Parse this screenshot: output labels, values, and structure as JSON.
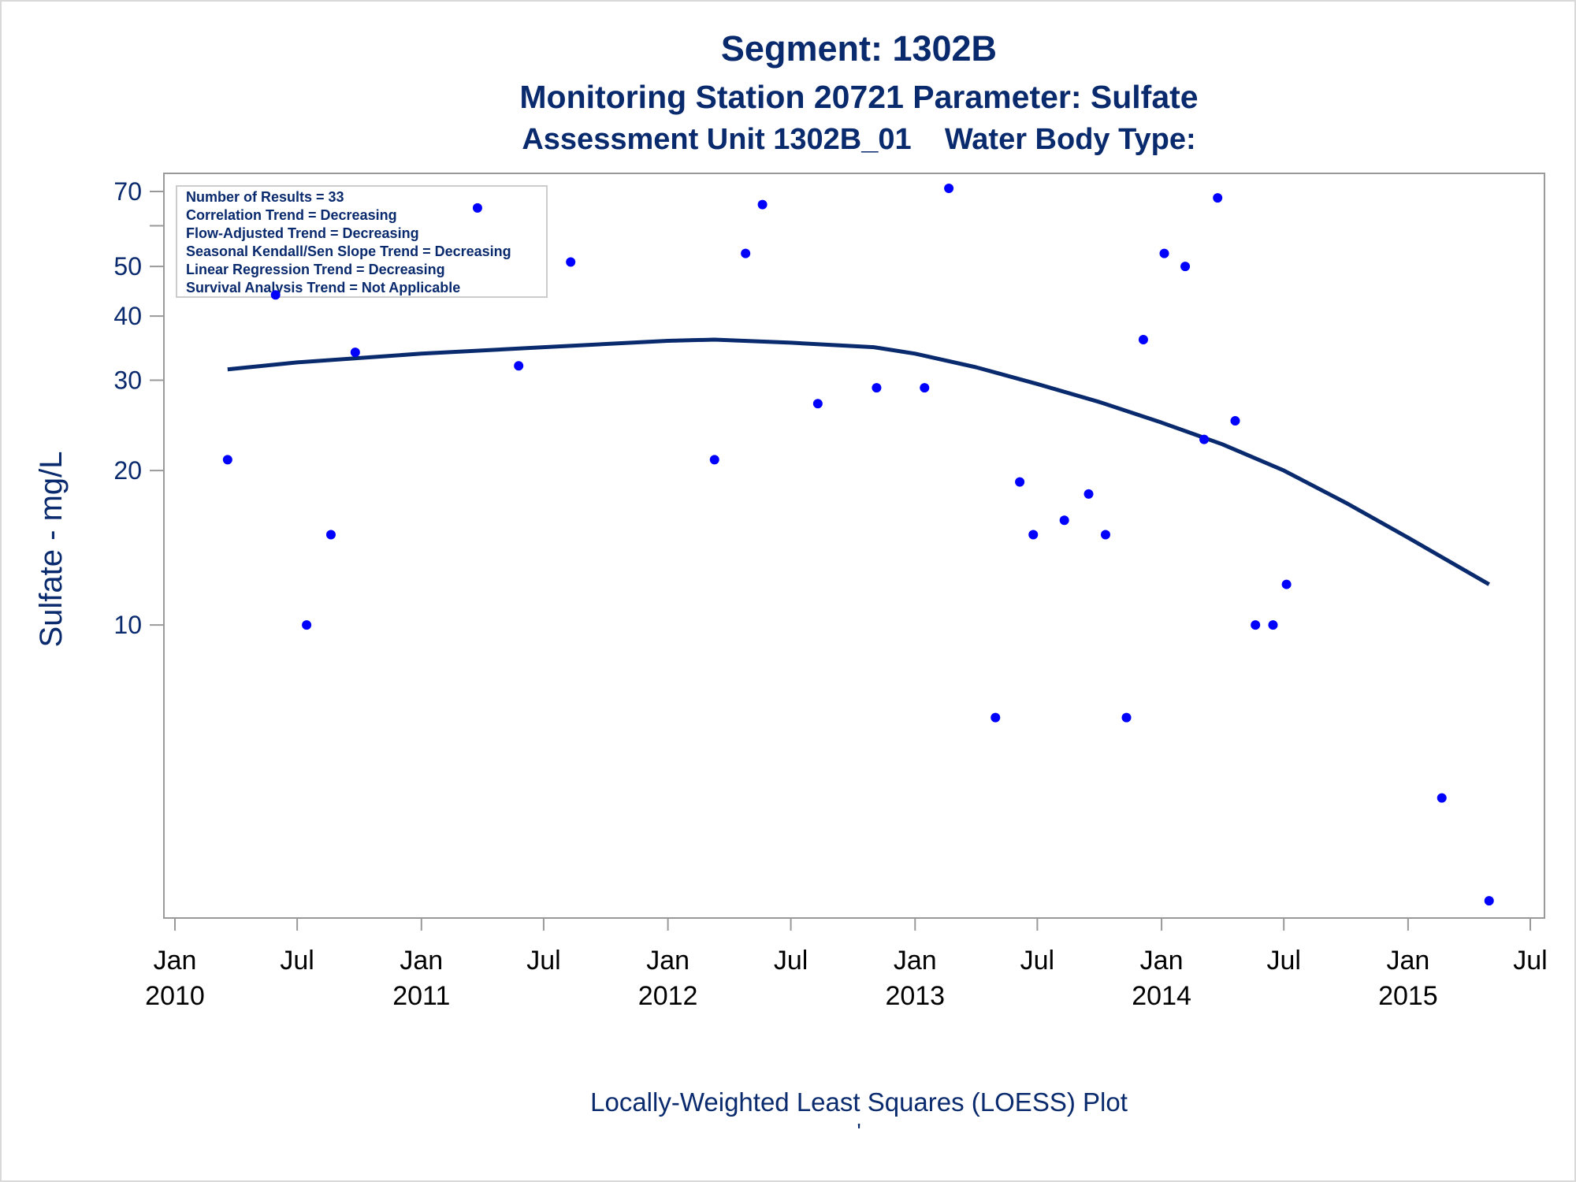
{
  "titles": {
    "line1": "Segment: 1302B",
    "line2": "Monitoring Station 20721 Parameter: Sulfate",
    "line3": "Assessment Unit 1302B_01    Water Body Type:"
  },
  "footer": {
    "text": "Locally-Weighted Least Squares (LOESS) Plot",
    "mark": "'"
  },
  "inset_lines": [
    "Number of Results = 33",
    "Correlation Trend = Decreasing",
    "Flow-Adjusted Trend = Decreasing",
    "Seasonal Kendall/Sen Slope Trend = Decreasing",
    "Linear Regression Trend = Decreasing",
    "Survival Analysis Trend = Not Applicable"
  ],
  "colors": {
    "text": "#0a2a6e",
    "points": "#0000ff",
    "loess_line": "#0a2a6e",
    "axis": "#999999"
  },
  "chart_data": {
    "type": "scatter",
    "ylabel": "Sulfate - mg/L",
    "xlabel": "",
    "y_scale": "log",
    "ylim": [
      2.8,
      72
    ],
    "xlim": [
      "2010-01-01",
      "2015-07-01"
    ],
    "y_ticks": [
      10,
      20,
      30,
      40,
      50,
      70
    ],
    "y_minor_ticks": [
      60
    ],
    "x_ticks": [
      {
        "date": "2010-01-01",
        "label": [
          "Jan",
          "2010"
        ]
      },
      {
        "date": "2010-07-01",
        "label": [
          "Jul",
          ""
        ]
      },
      {
        "date": "2011-01-01",
        "label": [
          "Jan",
          "2011"
        ]
      },
      {
        "date": "2011-07-01",
        "label": [
          "Jul",
          ""
        ]
      },
      {
        "date": "2012-01-01",
        "label": [
          "Jan",
          "2012"
        ]
      },
      {
        "date": "2012-07-01",
        "label": [
          "Jul",
          ""
        ]
      },
      {
        "date": "2013-01-01",
        "label": [
          "Jan",
          "2013"
        ]
      },
      {
        "date": "2013-07-01",
        "label": [
          "Jul",
          ""
        ]
      },
      {
        "date": "2014-01-01",
        "label": [
          "Jan",
          "2014"
        ]
      },
      {
        "date": "2014-07-01",
        "label": [
          "Jul",
          ""
        ]
      },
      {
        "date": "2015-01-01",
        "label": [
          "Jan",
          "2015"
        ]
      },
      {
        "date": "2015-07-01",
        "label": [
          "Jul",
          ""
        ]
      }
    ],
    "series": [
      {
        "kind": "points",
        "points": [
          {
            "x": "2010-03-20",
            "y": 21
          },
          {
            "x": "2010-05-30",
            "y": 44
          },
          {
            "x": "2010-07-15",
            "y": 10
          },
          {
            "x": "2010-08-20",
            "y": 15
          },
          {
            "x": "2010-09-25",
            "y": 34
          },
          {
            "x": "2011-03-25",
            "y": 65
          },
          {
            "x": "2011-05-25",
            "y": 32
          },
          {
            "x": "2011-08-10",
            "y": 51
          },
          {
            "x": "2012-03-10",
            "y": 21
          },
          {
            "x": "2012-04-25",
            "y": 53
          },
          {
            "x": "2012-05-20",
            "y": 66
          },
          {
            "x": "2012-08-10",
            "y": 27
          },
          {
            "x": "2012-11-05",
            "y": 29
          },
          {
            "x": "2013-01-15",
            "y": 29
          },
          {
            "x": "2013-02-20",
            "y": 71
          },
          {
            "x": "2013-04-30",
            "y": 6.6
          },
          {
            "x": "2013-06-05",
            "y": 19
          },
          {
            "x": "2013-06-25",
            "y": 15
          },
          {
            "x": "2013-08-10",
            "y": 16
          },
          {
            "x": "2013-09-15",
            "y": 18
          },
          {
            "x": "2013-10-10",
            "y": 15
          },
          {
            "x": "2013-11-10",
            "y": 6.6
          },
          {
            "x": "2013-12-05",
            "y": 36
          },
          {
            "x": "2014-01-05",
            "y": 53
          },
          {
            "x": "2014-02-05",
            "y": 50
          },
          {
            "x": "2014-03-05",
            "y": 23
          },
          {
            "x": "2014-03-25",
            "y": 68
          },
          {
            "x": "2014-04-20",
            "y": 25
          },
          {
            "x": "2014-05-20",
            "y": 10
          },
          {
            "x": "2014-06-15",
            "y": 10
          },
          {
            "x": "2014-07-05",
            "y": 12
          },
          {
            "x": "2015-02-20",
            "y": 4.6
          },
          {
            "x": "2015-05-01",
            "y": 2.9
          }
        ]
      },
      {
        "kind": "loess_line",
        "points": [
          {
            "x": "2010-03-20",
            "y": 31.5
          },
          {
            "x": "2010-07-01",
            "y": 32.5
          },
          {
            "x": "2011-01-01",
            "y": 33.8
          },
          {
            "x": "2011-07-01",
            "y": 34.8
          },
          {
            "x": "2012-01-01",
            "y": 35.8
          },
          {
            "x": "2012-03-10",
            "y": 36.0
          },
          {
            "x": "2012-07-01",
            "y": 35.5
          },
          {
            "x": "2012-11-01",
            "y": 34.8
          },
          {
            "x": "2013-01-01",
            "y": 33.8
          },
          {
            "x": "2013-04-01",
            "y": 31.8
          },
          {
            "x": "2013-07-01",
            "y": 29.5
          },
          {
            "x": "2013-10-01",
            "y": 27.2
          },
          {
            "x": "2014-01-01",
            "y": 24.8
          },
          {
            "x": "2014-04-01",
            "y": 22.5
          },
          {
            "x": "2014-07-01",
            "y": 20.0
          },
          {
            "x": "2014-10-01",
            "y": 17.3
          },
          {
            "x": "2015-01-01",
            "y": 14.8
          },
          {
            "x": "2015-05-01",
            "y": 12.0
          }
        ]
      }
    ]
  }
}
